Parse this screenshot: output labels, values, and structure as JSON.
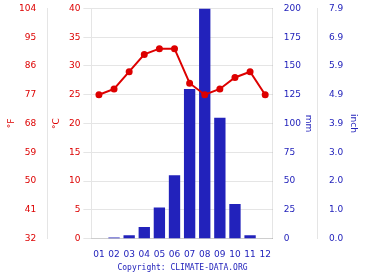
{
  "chart_data": {
    "type": "bar",
    "categories": [
      "01",
      "02",
      "03",
      "04",
      "05",
      "06",
      "07",
      "08",
      "09",
      "10",
      "11",
      "12"
    ],
    "series": [
      {
        "type": "bar",
        "color": "#2222bb",
        "axis": "y2",
        "values": [
          0,
          1,
          3,
          10,
          27,
          55,
          130,
          200,
          105,
          30,
          3,
          0
        ]
      },
      {
        "type": "line",
        "color": "#dd0000",
        "marker": "circle",
        "values": [
          25,
          26,
          29,
          32,
          33,
          33,
          27,
          25,
          26,
          28,
          29,
          25
        ]
      }
    ],
    "ylabel": "°C",
    "ylim": [
      0,
      40
    ],
    "yticks": [
      0,
      5,
      10,
      15,
      20,
      25,
      30,
      35,
      40
    ],
    "y2label": "mm",
    "y2lim": [
      0,
      200
    ],
    "y2ticks": [
      0,
      25,
      50,
      75,
      100,
      125,
      150,
      175,
      200
    ],
    "y3label": "°F",
    "y3lim": [
      32,
      104
    ],
    "y3ticks": [
      32,
      41,
      50,
      59,
      68,
      77,
      86,
      95,
      104
    ],
    "y4label": "inch",
    "y4lim": [
      0,
      7.874015748031496
    ],
    "y4ticks": [
      {
        "value": 0,
        "label": "0.0"
      },
      {
        "value": 0.984251968503937,
        "label": "1.0"
      },
      {
        "value": 1.968503937007874,
        "label": "2.0"
      },
      {
        "value": 2.952755905511811,
        "label": "3.0"
      },
      {
        "value": 3.937007874015748,
        "label": "3.9"
      },
      {
        "value": 4.921259842519685,
        "label": "4.9"
      },
      {
        "value": 5.905511811023622,
        "label": "5.9"
      },
      {
        "value": 6.889763779527559,
        "label": "6.9"
      },
      {
        "value": 7.874015748031496,
        "label": "7.9"
      }
    ],
    "subtitle": "Copyright: CLIMATE-DATA.ORG",
    "grid": true
  }
}
